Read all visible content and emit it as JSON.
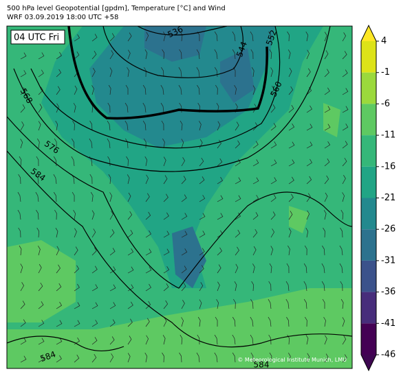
{
  "header": {
    "line1": "500 hPa level Geopotential [gpdm], Temperature [°C] and Wind",
    "line2": "WRF 03.09.2019 18:00 UTC +58"
  },
  "time_label": "04 UTC Fri",
  "contour_labels": [
    "536",
    "544",
    "552",
    "560",
    "568",
    "576",
    "584",
    "584",
    "584"
  ],
  "colorbar": {
    "ticks": [
      4,
      -1,
      -6,
      -11,
      -16,
      -21,
      -26,
      -31,
      -36,
      -41,
      -46
    ],
    "colors": [
      "#dde318",
      "#9bd93c",
      "#5ec962",
      "#35b779",
      "#21a585",
      "#23898e",
      "#2c728e",
      "#3b528b",
      "#472d7b",
      "#440154"
    ],
    "over_color": "#fde725",
    "under_color": "#3e0751"
  },
  "credit": "© Meteorological Institute Munich, LMU"
}
